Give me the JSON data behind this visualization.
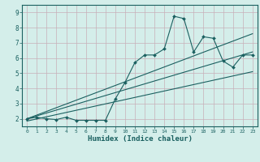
{
  "title": "",
  "xlabel": "Humidex (Indice chaleur)",
  "xlim": [
    -0.5,
    23.5
  ],
  "ylim": [
    1.5,
    9.5
  ],
  "xticks": [
    0,
    1,
    2,
    3,
    4,
    5,
    6,
    7,
    8,
    9,
    10,
    11,
    12,
    13,
    14,
    15,
    16,
    17,
    18,
    19,
    20,
    21,
    22,
    23
  ],
  "yticks": [
    2,
    3,
    4,
    5,
    6,
    7,
    8,
    9
  ],
  "bg_color": "#d4eeea",
  "grid_color": "#c8b0b8",
  "line_color": "#1a6060",
  "data_x": [
    0,
    1,
    2,
    3,
    4,
    5,
    6,
    7,
    8,
    9,
    10,
    11,
    12,
    13,
    14,
    15,
    16,
    17,
    18,
    19,
    20,
    21,
    22,
    23
  ],
  "data_y": [
    2.0,
    2.1,
    2.0,
    1.95,
    2.1,
    1.9,
    1.9,
    1.9,
    1.9,
    3.3,
    4.4,
    5.7,
    6.2,
    6.2,
    6.6,
    8.75,
    8.6,
    6.4,
    7.4,
    7.3,
    5.8,
    5.4,
    6.2,
    6.2
  ],
  "reg_line1_x": [
    0,
    23
  ],
  "reg_line1_y": [
    2.0,
    6.4
  ],
  "reg_line2_x": [
    0,
    23
  ],
  "reg_line2_y": [
    1.85,
    5.1
  ],
  "reg_line3_x": [
    0,
    23
  ],
  "reg_line3_y": [
    2.0,
    7.6
  ]
}
